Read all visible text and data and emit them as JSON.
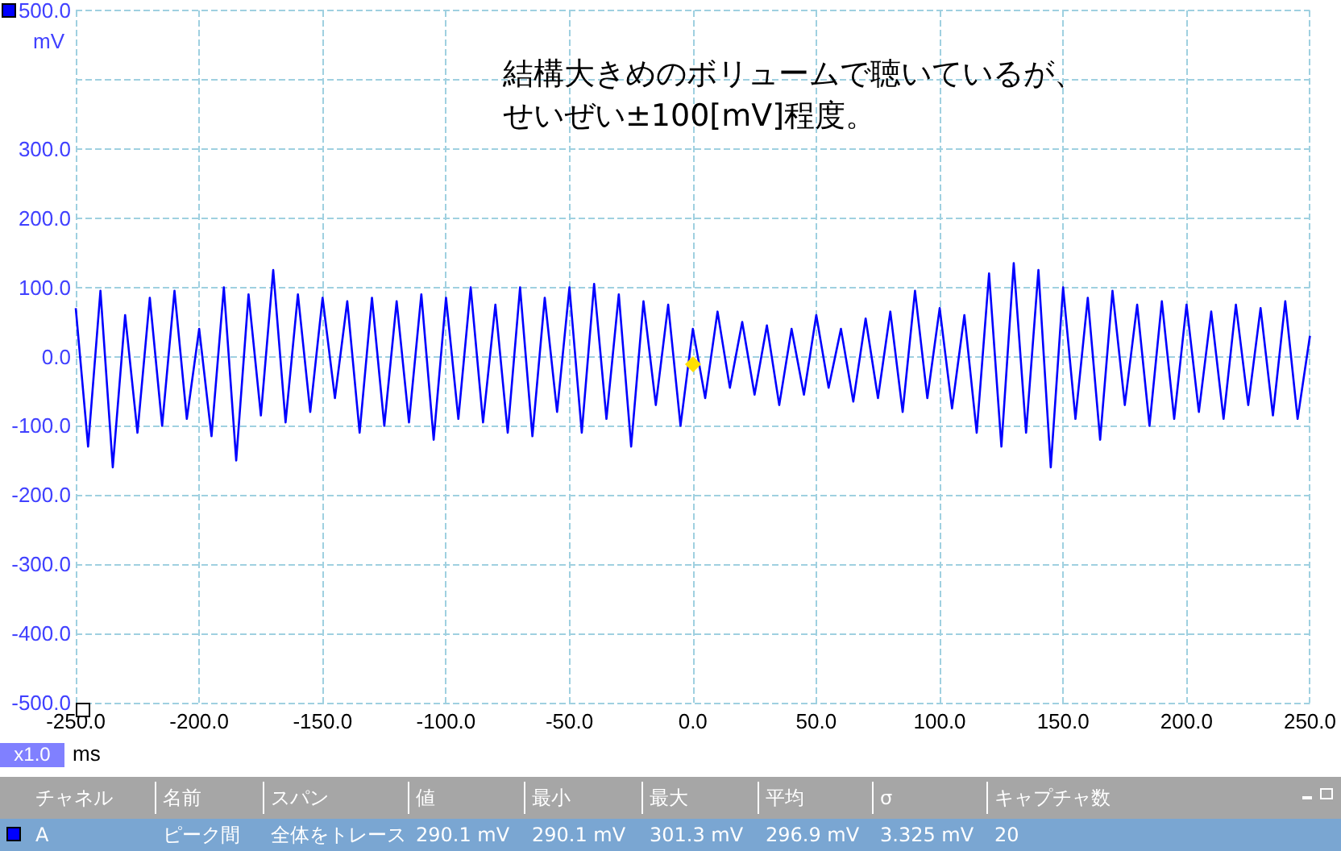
{
  "chart_data": {
    "type": "line",
    "xlabel": "ms",
    "ylabel": "mV",
    "annotations": [
      "結構大きめのボリュームで聴いているが、",
      "せいぜい±100[mV]程度。",
      "x1.0",
      "チャネル",
      "名前",
      "スパン",
      "値",
      "最小",
      "最大",
      "平均",
      "σ",
      "キャプチャ数",
      "A",
      "ピーク間",
      "全体をトレース",
      "290.1 mV",
      "290.1 mV",
      "301.3 mV",
      "296.9 mV",
      "3.325 mV",
      "20"
    ],
    "x": [
      -250,
      -245,
      -240,
      -235,
      -230,
      -225,
      -220,
      -215,
      -210,
      -205,
      -200,
      -195,
      -190,
      -185,
      -180,
      -175,
      -170,
      -165,
      -160,
      -155,
      -150,
      -145,
      -140,
      -135,
      -130,
      -125,
      -120,
      -115,
      -110,
      -105,
      -100,
      -95,
      -90,
      -85,
      -80,
      -75,
      -70,
      -65,
      -60,
      -55,
      -50,
      -45,
      -40,
      -35,
      -30,
      -25,
      -20,
      -15,
      -10,
      -5,
      0,
      5,
      10,
      15,
      20,
      25,
      30,
      35,
      40,
      45,
      50,
      55,
      60,
      65,
      70,
      75,
      80,
      85,
      90,
      95,
      100,
      105,
      110,
      115,
      120,
      125,
      130,
      135,
      140,
      145,
      150,
      155,
      160,
      165,
      170,
      175,
      180,
      185,
      190,
      195,
      200,
      205,
      210,
      215,
      220,
      225,
      230,
      235,
      240,
      245,
      250
    ],
    "series": [
      {
        "color": "#0000ff",
        "values": [
          70,
          -130,
          95,
          -160,
          60,
          -110,
          85,
          -100,
          95,
          -90,
          40,
          -115,
          100,
          -150,
          90,
          -85,
          125,
          -95,
          90,
          -80,
          85,
          -60,
          80,
          -110,
          85,
          -100,
          80,
          -95,
          90,
          -120,
          85,
          -90,
          100,
          -95,
          75,
          -110,
          100,
          -115,
          85,
          -80,
          100,
          -110,
          105,
          -90,
          90,
          -130,
          80,
          -70,
          75,
          -100,
          40,
          -60,
          65,
          -45,
          50,
          -55,
          45,
          -70,
          40,
          -55,
          60,
          -45,
          40,
          -65,
          55,
          -60,
          65,
          -80,
          95,
          -60,
          70,
          -75,
          60,
          -110,
          120,
          -130,
          135,
          -110,
          125,
          -160,
          100,
          -90,
          85,
          -120,
          95,
          -70,
          75,
          -100,
          80,
          -90,
          75,
          -80,
          65,
          -90,
          75,
          -70,
          70,
          -85,
          80,
          -90,
          30
        ]
      }
    ],
    "xlim": [
      -250,
      250
    ],
    "ylim": [
      -500,
      500
    ],
    "xticks": [
      {
        "value": -250,
        "label": "-250.0"
      },
      {
        "value": -200,
        "label": "-200.0"
      },
      {
        "value": -150,
        "label": "-150.0"
      },
      {
        "value": -100,
        "label": "-100.0"
      },
      {
        "value": -50,
        "label": "-50.0"
      },
      {
        "value": 0,
        "label": "0.0"
      },
      {
        "value": 50,
        "label": "50.0"
      },
      {
        "value": 100,
        "label": "100.0"
      },
      {
        "value": 150,
        "label": "150.0"
      },
      {
        "value": 200,
        "label": "200.0"
      },
      {
        "value": 250,
        "label": "250.0"
      }
    ],
    "yticks": [
      {
        "value": -500,
        "label": "-500.0"
      },
      {
        "value": -400,
        "label": "-400.0"
      },
      {
        "value": -300,
        "label": "-300.0"
      },
      {
        "value": -200,
        "label": "-200.0"
      },
      {
        "value": -100,
        "label": "-100.0"
      },
      {
        "value": 0,
        "label": "0.0"
      },
      {
        "value": 100,
        "label": "100.0"
      },
      {
        "value": 200,
        "label": "200.0"
      },
      {
        "value": 300,
        "label": "300.0"
      },
      {
        "value": 400,
        "label": null
      },
      {
        "value": 500,
        "label": "500.0"
      }
    ],
    "grid": true,
    "marker": "none",
    "line_style": "solid"
  }
}
